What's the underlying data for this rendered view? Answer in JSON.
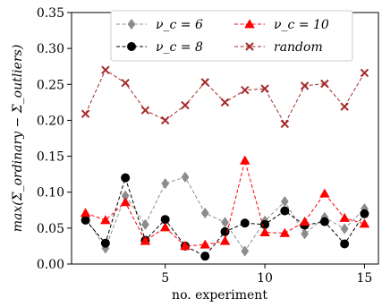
{
  "chart_data": {
    "type": "line",
    "xlabel": "no. experiment",
    "ylabel": "max(Σ_ordinary − Σ_outliers)",
    "xlim": [
      0.3,
      15.7
    ],
    "ylim": [
      0.0,
      0.35
    ],
    "xticks": [
      5,
      10,
      15
    ],
    "yticks": [
      0.0,
      0.05,
      0.1,
      0.15,
      0.2,
      0.25,
      0.3,
      0.35
    ],
    "ytick_labels": [
      "0.00",
      "0.05",
      "0.10",
      "0.15",
      "0.20",
      "0.25",
      "0.30",
      "0.35"
    ],
    "legend_position": "top-center",
    "x": [
      1,
      2,
      3,
      4,
      5,
      6,
      7,
      8,
      9,
      10,
      11,
      12,
      13,
      14,
      15
    ],
    "series": [
      {
        "name": "ν_c = 6",
        "color": "#8c8c8c",
        "marker": "diamond",
        "values": [
          0.065,
          0.022,
          0.095,
          0.055,
          0.112,
          0.121,
          0.071,
          0.058,
          0.018,
          0.06,
          0.087,
          0.042,
          0.065,
          0.049,
          0.077
        ]
      },
      {
        "name": "ν_c = 8",
        "color": "#000000",
        "marker": "circle",
        "values": [
          0.061,
          0.029,
          0.12,
          0.033,
          0.062,
          0.025,
          0.011,
          0.045,
          0.057,
          0.055,
          0.074,
          0.054,
          0.059,
          0.028,
          0.07
        ]
      },
      {
        "name": "ν_c = 10",
        "color": "#ff0000",
        "marker": "triangle",
        "values": [
          0.071,
          0.061,
          0.086,
          0.032,
          0.051,
          0.025,
          0.027,
          0.032,
          0.144,
          0.044,
          0.043,
          0.059,
          0.098,
          0.064,
          0.056
        ]
      },
      {
        "name": "random",
        "color": "#a52a2a",
        "marker": "x",
        "values": [
          0.209,
          0.27,
          0.252,
          0.214,
          0.2,
          0.221,
          0.253,
          0.225,
          0.242,
          0.244,
          0.195,
          0.248,
          0.251,
          0.219,
          0.266
        ]
      }
    ]
  }
}
